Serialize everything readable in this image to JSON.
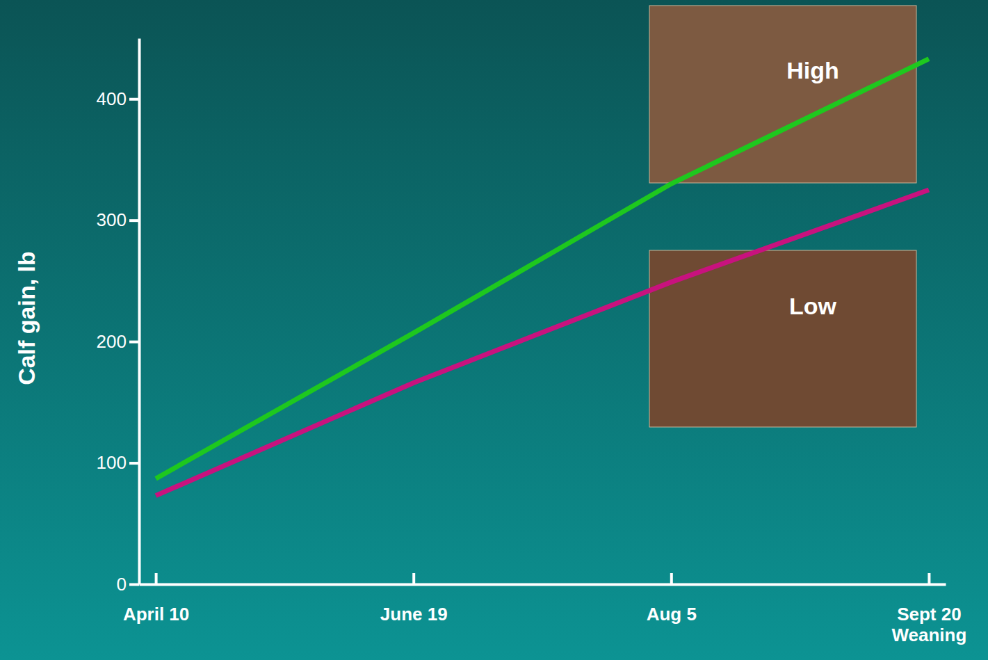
{
  "chart_data": {
    "type": "line",
    "y_label": "Calf gain, lb",
    "categories": [
      "April 10",
      "June 19",
      "Aug 5",
      "Sept 20\nWeaning"
    ],
    "series": [
      {
        "name": "High",
        "color": "#1ec81e",
        "values": [
          87,
          207,
          330,
          433
        ]
      },
      {
        "name": "Low",
        "color": "#c8127e",
        "values": [
          73,
          166,
          249,
          325
        ]
      }
    ],
    "ylim": [
      0,
      450
    ],
    "yticks": [
      0,
      100,
      200,
      300,
      400
    ],
    "grid": false
  }
}
